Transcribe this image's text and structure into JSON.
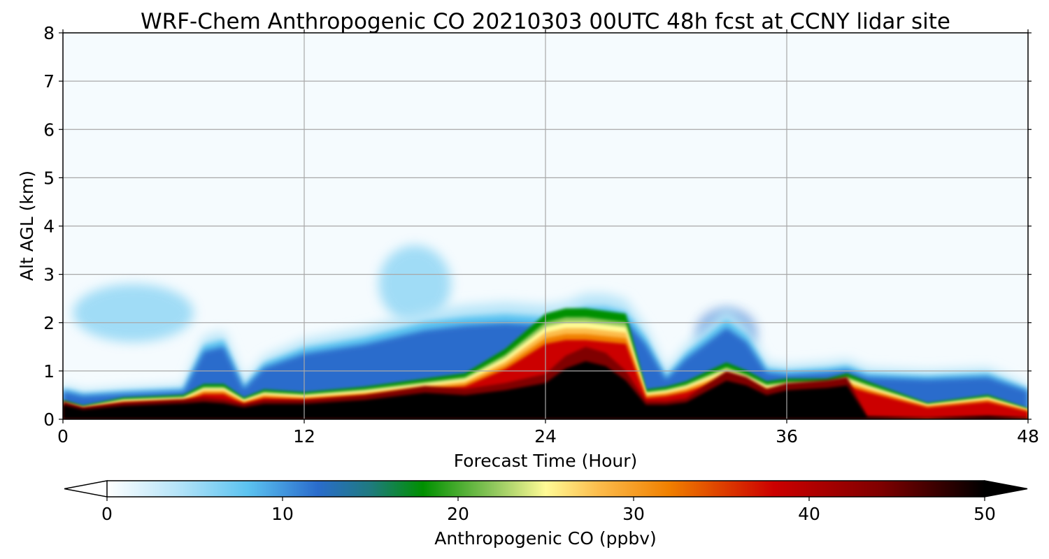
{
  "chart_data": {
    "type": "heatmap",
    "title": "WRF-Chem Anthropogenic CO  20210303 00UTC 48h fcst at CCNY lidar site",
    "xlabel": "Forecast Time (Hour)",
    "ylabel": "Alt AGL (km)",
    "xlim": [
      0,
      48
    ],
    "ylim": [
      0,
      8
    ],
    "xticks": [
      0,
      12,
      24,
      36,
      48
    ],
    "yticks": [
      0,
      1,
      2,
      3,
      4,
      5,
      6,
      7,
      8
    ],
    "grid": true,
    "colorbar": {
      "label": "Anthropogenic CO  (ppbv)",
      "min": 0,
      "max": 50,
      "ticks": [
        0,
        10,
        20,
        30,
        40,
        50
      ],
      "extend": "both",
      "stops": [
        {
          "value": 0,
          "color": "#ffffff"
        },
        {
          "value": 4,
          "color": "#b6e4f8"
        },
        {
          "value": 8,
          "color": "#5cc3f0"
        },
        {
          "value": 12,
          "color": "#2a6ccc"
        },
        {
          "value": 15,
          "color": "#1f7a7f"
        },
        {
          "value": 18,
          "color": "#009000"
        },
        {
          "value": 22,
          "color": "#8ec65c"
        },
        {
          "value": 25,
          "color": "#fffa96"
        },
        {
          "value": 28,
          "color": "#fcbc4c"
        },
        {
          "value": 32,
          "color": "#f08000"
        },
        {
          "value": 38,
          "color": "#cc0000"
        },
        {
          "value": 44,
          "color": "#800000"
        },
        {
          "value": 50,
          "color": "#000000"
        }
      ]
    },
    "profile": {
      "hours": [
        0,
        1,
        3,
        6,
        7,
        8,
        9,
        10,
        12,
        15,
        18,
        20,
        22,
        24,
        25,
        26,
        27,
        28,
        29,
        30,
        31,
        33,
        34,
        35,
        36,
        38,
        39,
        40,
        43,
        46,
        48
      ],
      "pbl_top_km": [
        0.35,
        0.25,
        0.4,
        0.45,
        0.65,
        0.65,
        0.4,
        0.55,
        0.5,
        0.6,
        0.75,
        0.85,
        1.3,
        1.95,
        2.05,
        2.05,
        2.0,
        1.95,
        0.55,
        0.6,
        0.7,
        1.05,
        0.9,
        0.7,
        0.75,
        0.75,
        0.85,
        0.7,
        0.3,
        0.45,
        0.2
      ],
      "dark_top_km": [
        0.3,
        0.2,
        0.28,
        0.33,
        0.36,
        0.33,
        0.25,
        0.32,
        0.32,
        0.4,
        0.55,
        0.5,
        0.6,
        0.75,
        1.05,
        1.2,
        1.1,
        0.8,
        0.3,
        0.3,
        0.35,
        0.8,
        0.7,
        0.5,
        0.6,
        0.65,
        0.7,
        0.05,
        0.02,
        0.06,
        0.02
      ],
      "plume_top_km": [
        0.6,
        0.5,
        0.55,
        0.6,
        1.45,
        1.55,
        0.65,
        1.1,
        1.4,
        1.6,
        1.9,
        2.0,
        2.05,
        2.0,
        2.05,
        2.2,
        2.2,
        2.1,
        1.6,
        0.85,
        1.3,
        1.95,
        1.65,
        1.0,
        0.95,
        1.0,
        1.05,
        0.9,
        0.85,
        0.9,
        0.6
      ]
    },
    "elevated_features": [
      {
        "name": "aloft-plume-early",
        "x_hours": 3.5,
        "y_km": 2.2,
        "half_width_hours": 3,
        "half_height_km": 0.6,
        "value_ppbv": 10
      },
      {
        "name": "aloft-plume-17h",
        "x_hours": 17.5,
        "y_km": 2.8,
        "half_width_hours": 1.8,
        "half_height_km": 0.8,
        "value_ppbv": 10
      },
      {
        "name": "aloft-plume-33h",
        "x_hours": 33,
        "y_km": 1.8,
        "half_width_hours": 1.5,
        "half_height_km": 0.5,
        "value_ppbv": 12
      }
    ]
  }
}
